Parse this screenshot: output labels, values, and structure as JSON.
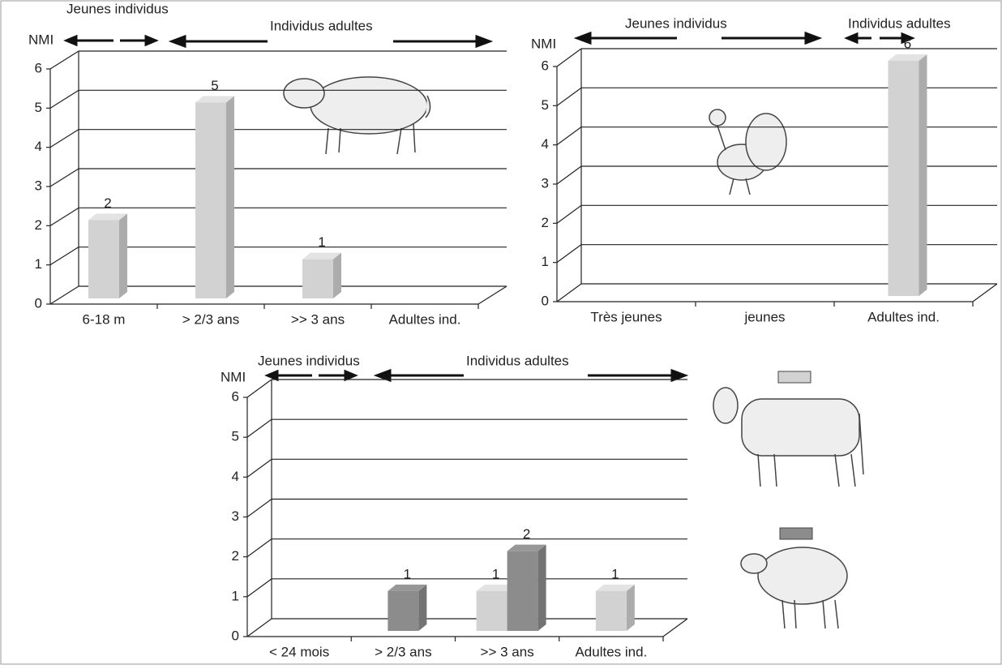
{
  "chart_data": [
    {
      "type": "bar",
      "ylabel": "NMI",
      "annotations": [
        "Jeunes individus",
        "Individus adultes"
      ],
      "categories": [
        "6-18 m",
        "> 2/3 ans",
        ">> 3 ans",
        "Adultes ind."
      ],
      "series": [
        {
          "color": "#d2d2d2",
          "values": [
            2,
            5,
            1,
            null
          ]
        }
      ],
      "ylim": [
        0,
        6
      ],
      "yticks": [
        0,
        1,
        2,
        3,
        4,
        5,
        6
      ],
      "grid": true
    },
    {
      "type": "bar",
      "ylabel": "NMI",
      "annotations": [
        "Jeunes individus",
        "Individus adultes"
      ],
      "categories": [
        "Très jeunes",
        "jeunes",
        "Adultes ind."
      ],
      "series": [
        {
          "color": "#d2d2d2",
          "values": [
            null,
            null,
            6
          ]
        }
      ],
      "ylim": [
        0,
        6
      ],
      "yticks": [
        0,
        1,
        2,
        3,
        4,
        5,
        6
      ],
      "grid": true
    },
    {
      "type": "bar",
      "ylabel": "NMI",
      "annotations": [
        "Jeunes individus",
        "Individus adultes"
      ],
      "categories": [
        "< 24 mois",
        "> 2/3 ans",
        ">> 3 ans",
        "Adultes ind."
      ],
      "series": [
        {
          "color": "#d2d2d2",
          "values": [
            null,
            null,
            1,
            1
          ]
        },
        {
          "color": "#8c8c8c",
          "values": [
            null,
            1,
            2,
            null
          ]
        }
      ],
      "ylim": [
        0,
        6
      ],
      "yticks": [
        0,
        1,
        2,
        3,
        4,
        5,
        6
      ],
      "grid": true
    }
  ]
}
